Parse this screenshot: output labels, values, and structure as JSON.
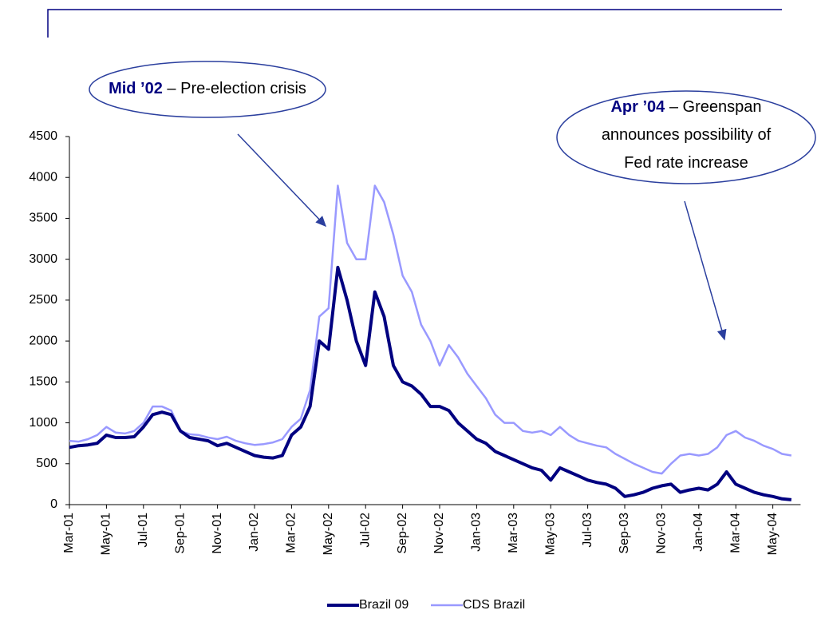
{
  "chart_data": {
    "type": "line",
    "categories": [
      "Mar-01",
      null,
      null,
      null,
      "May-01",
      null,
      null,
      null,
      "Jul-01",
      null,
      null,
      null,
      "Sep-01",
      null,
      null,
      null,
      "Nov-01",
      null,
      null,
      null,
      "Jan-02",
      null,
      null,
      null,
      "Mar-02",
      null,
      null,
      null,
      "May-02",
      null,
      null,
      null,
      "Jul-02",
      null,
      null,
      null,
      "Sep-02",
      null,
      null,
      null,
      "Nov-02",
      null,
      null,
      null,
      "Jan-03",
      null,
      null,
      null,
      "Mar-03",
      null,
      null,
      null,
      "May-03",
      null,
      null,
      null,
      "Jul-03",
      null,
      null,
      null,
      "Sep-03",
      null,
      null,
      null,
      "Nov-03",
      null,
      null,
      null,
      "Jan-04",
      null,
      null,
      null,
      "Mar-04",
      null,
      null,
      null,
      "May-04",
      null,
      null
    ],
    "series": [
      {
        "name": "Brazil 09",
        "color": "#000080",
        "values": [
          700,
          720,
          730,
          750,
          850,
          820,
          820,
          830,
          950,
          1100,
          1130,
          1100,
          900,
          820,
          800,
          780,
          720,
          750,
          700,
          650,
          600,
          580,
          570,
          600,
          850,
          950,
          1200,
          2000,
          1900,
          2900,
          2500,
          2000,
          1700,
          2600,
          2300,
          1700,
          1500,
          1450,
          1350,
          1200,
          1200,
          1150,
          1000,
          900,
          800,
          750,
          650,
          600,
          550,
          500,
          450,
          420,
          300,
          450,
          400,
          350,
          300,
          270,
          250,
          200,
          100,
          120,
          150,
          200,
          230,
          250,
          150,
          180,
          200,
          180,
          250,
          400,
          250,
          200,
          150,
          120,
          100,
          70,
          60
        ]
      },
      {
        "name": "CDS Brazil",
        "color": "#9999ff",
        "values": [
          780,
          770,
          800,
          850,
          950,
          880,
          870,
          900,
          1000,
          1200,
          1200,
          1150,
          900,
          860,
          850,
          820,
          800,
          830,
          780,
          750,
          730,
          740,
          760,
          800,
          950,
          1050,
          1400,
          2300,
          2400,
          3900,
          3200,
          3000,
          3000,
          3900,
          3700,
          3300,
          2800,
          2600,
          2200,
          2000,
          1700,
          1950,
          1800,
          1600,
          1450,
          1300,
          1100,
          1000,
          1000,
          900,
          880,
          900,
          850,
          950,
          850,
          780,
          750,
          720,
          700,
          620,
          560,
          500,
          450,
          400,
          380,
          500,
          600,
          620,
          600,
          620,
          700,
          850,
          900,
          820,
          780,
          720,
          680,
          620,
          600
        ]
      }
    ],
    "ylim": [
      0,
      4500
    ],
    "yticks": [
      0,
      500,
      1000,
      1500,
      2000,
      2500,
      3000,
      3500,
      4000,
      4500
    ],
    "legend": "bottom",
    "annotations": [
      {
        "label": "Mid ’02",
        "text": [
          "– Pre-election crisis"
        ]
      },
      {
        "label": "Apr ’04",
        "text": [
          "– Greenspan",
          "announces possibility of",
          "Fed rate increase"
        ]
      }
    ]
  }
}
